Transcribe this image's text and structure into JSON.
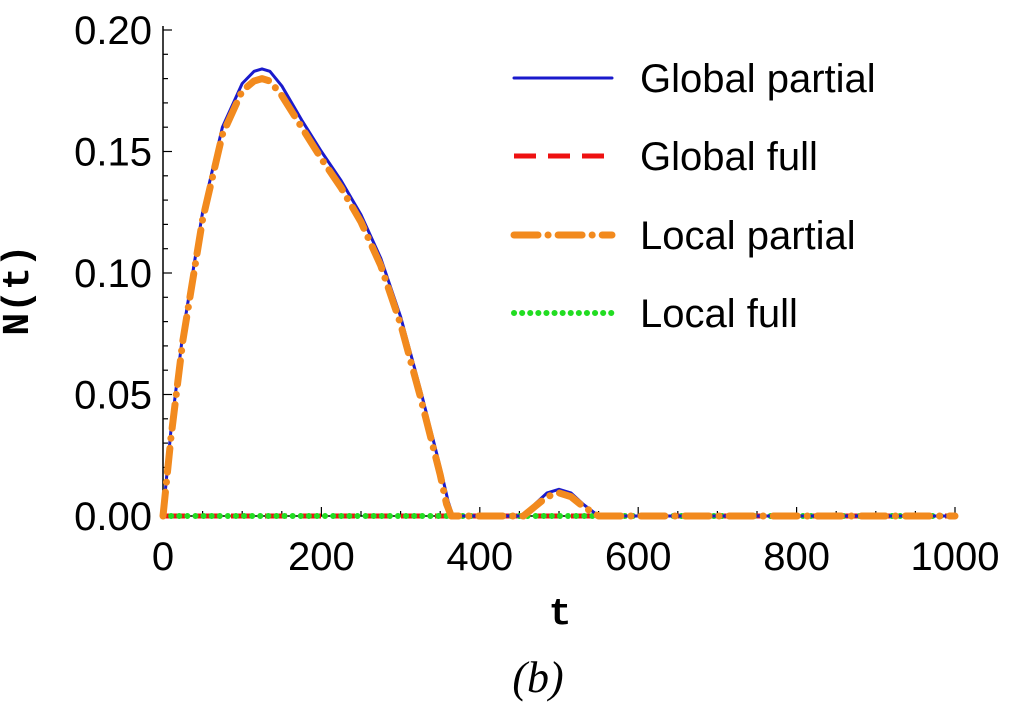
{
  "chart_data": {
    "type": "line",
    "panel_label": "(b)",
    "xlabel": "t",
    "ylabel": "N(t)",
    "xlim": [
      0,
      1000
    ],
    "ylim": [
      0,
      0.2
    ],
    "x_ticks": [
      0,
      200,
      400,
      600,
      800,
      1000
    ],
    "x_tick_labels": [
      "0",
      "200",
      "400",
      "600",
      "800",
      "1000"
    ],
    "y_ticks": [
      0,
      0.05,
      0.1,
      0.15,
      0.2
    ],
    "y_tick_labels": [
      "0.00",
      "0.05",
      "0.10",
      "0.15",
      "0.20"
    ],
    "legend_position": "top-right",
    "grid": false,
    "series": [
      {
        "name": "Global partial",
        "color": "#1a1acc",
        "style": "solid",
        "x": [
          0,
          10,
          25,
          50,
          75,
          100,
          115,
          125,
          135,
          150,
          175,
          200,
          225,
          250,
          275,
          300,
          325,
          350,
          360,
          366,
          370,
          455,
          470,
          485,
          500,
          515,
          530,
          550,
          560,
          1000
        ],
        "y": [
          0,
          0.035,
          0.075,
          0.125,
          0.16,
          0.178,
          0.183,
          0.184,
          0.183,
          0.177,
          0.163,
          0.15,
          0.138,
          0.124,
          0.106,
          0.082,
          0.052,
          0.02,
          0.006,
          0,
          0,
          0,
          0.005,
          0.0095,
          0.011,
          0.0095,
          0.005,
          0,
          0,
          0
        ]
      },
      {
        "name": "Global full",
        "color": "#ee1111",
        "style": "dashed",
        "x": [
          0,
          1000
        ],
        "y": [
          0,
          0
        ]
      },
      {
        "name": "Local partial",
        "color": "#f28a1e",
        "style": "dash-dot",
        "x": [
          0,
          10,
          25,
          50,
          75,
          100,
          115,
          125,
          135,
          150,
          175,
          200,
          225,
          250,
          275,
          300,
          325,
          350,
          358,
          364,
          370,
          455,
          470,
          485,
          500,
          515,
          530,
          550,
          560,
          1000
        ],
        "y": [
          0,
          0.032,
          0.072,
          0.122,
          0.157,
          0.175,
          0.179,
          0.18,
          0.179,
          0.173,
          0.16,
          0.147,
          0.135,
          0.121,
          0.103,
          0.079,
          0.049,
          0.017,
          0.005,
          0,
          0,
          0,
          0.004,
          0.008,
          0.0095,
          0.008,
          0.004,
          0,
          0,
          0
        ]
      },
      {
        "name": "Local full",
        "color": "#22dd22",
        "style": "dotted",
        "x": [
          0,
          1000
        ],
        "y": [
          0,
          0
        ]
      }
    ]
  }
}
